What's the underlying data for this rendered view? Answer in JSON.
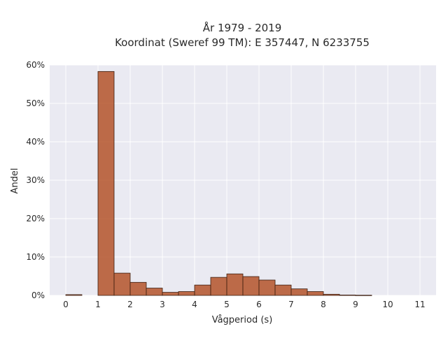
{
  "chart_data": {
    "type": "bar",
    "title_line1": "År 1979 - 2019",
    "title_line2": "Koordinat (Sweref 99 TM): E 357447, N 6233755",
    "xlabel": "Vågperiod (s)",
    "ylabel": "Andel",
    "xlim": [
      -0.5,
      11.5
    ],
    "ylim": [
      0,
      0.6
    ],
    "x_ticks": [
      0,
      1,
      2,
      3,
      4,
      5,
      6,
      7,
      8,
      9,
      10,
      11
    ],
    "x_tick_labels": [
      "0",
      "1",
      "2",
      "3",
      "4",
      "5",
      "6",
      "7",
      "8",
      "9",
      "10",
      "11"
    ],
    "y_ticks": [
      0,
      0.1,
      0.2,
      0.3,
      0.4,
      0.5,
      0.6
    ],
    "y_tick_labels": [
      "0%",
      "10%",
      "20%",
      "30%",
      "40%",
      "50%",
      "60%"
    ],
    "bin_width": 0.5,
    "bars": [
      {
        "x0": 0.0,
        "value": 0.002
      },
      {
        "x0": 1.0,
        "value": 0.583
      },
      {
        "x0": 1.5,
        "value": 0.058
      },
      {
        "x0": 2.0,
        "value": 0.034
      },
      {
        "x0": 2.5,
        "value": 0.019
      },
      {
        "x0": 3.0,
        "value": 0.008
      },
      {
        "x0": 3.5,
        "value": 0.01
      },
      {
        "x0": 4.0,
        "value": 0.027
      },
      {
        "x0": 4.5,
        "value": 0.047
      },
      {
        "x0": 5.0,
        "value": 0.056
      },
      {
        "x0": 5.5,
        "value": 0.049
      },
      {
        "x0": 6.0,
        "value": 0.04
      },
      {
        "x0": 6.5,
        "value": 0.027
      },
      {
        "x0": 7.0,
        "value": 0.017
      },
      {
        "x0": 7.5,
        "value": 0.01
      },
      {
        "x0": 8.0,
        "value": 0.003
      },
      {
        "x0": 8.5,
        "value": 0.001
      },
      {
        "x0": 9.0,
        "value": 0.0005
      }
    ],
    "bar_color": "#b4532a",
    "bar_edge_color": "#3d1e10",
    "plot_background": "#eaeaf2",
    "grid": true
  }
}
